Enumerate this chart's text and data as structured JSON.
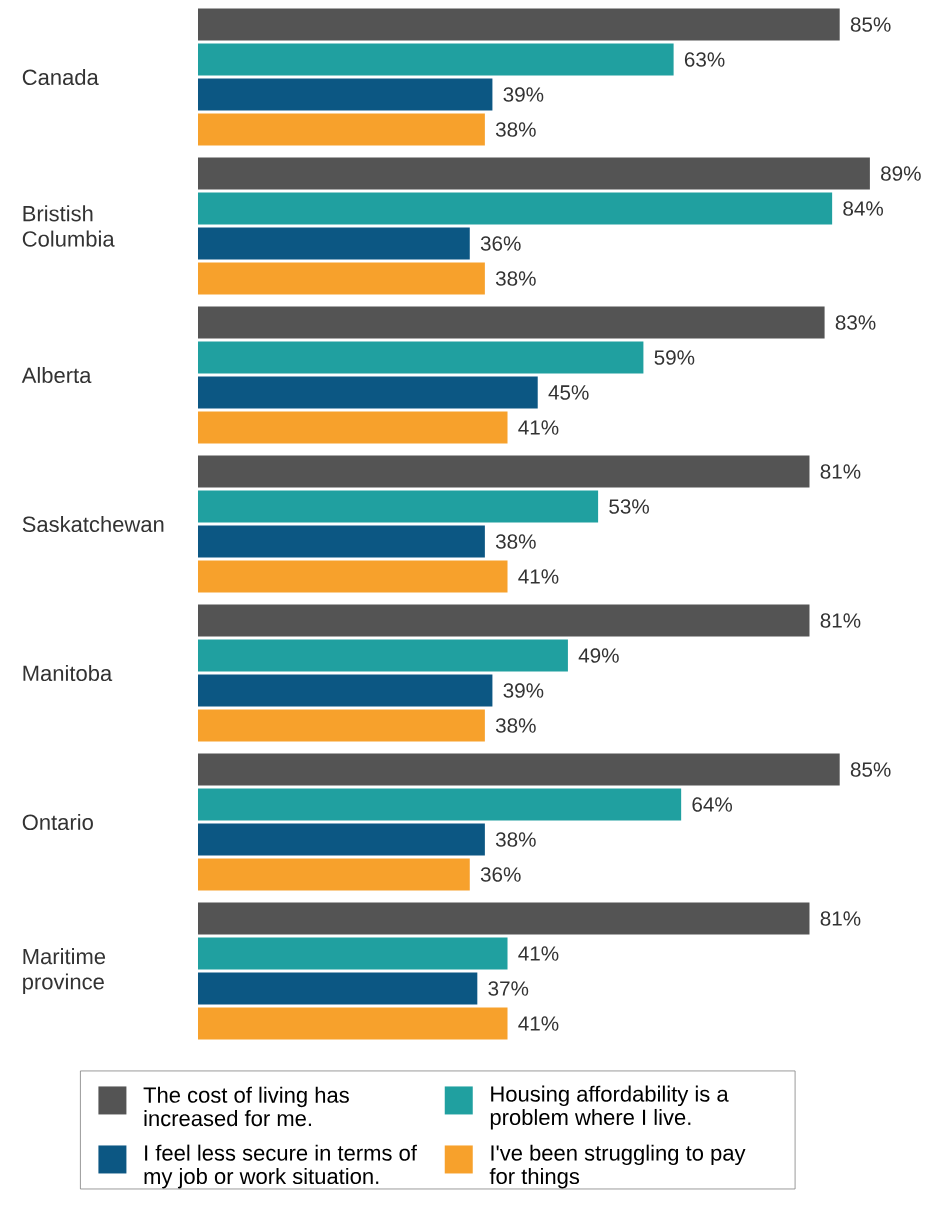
{
  "chart_data": {
    "type": "bar",
    "orientation": "horizontal",
    "legend": "bottom",
    "categories": [
      "Canada",
      "Bristish Columbia",
      "Alberta",
      "Saskatchewan",
      "Manitoba",
      "Ontario",
      "Maritime province"
    ],
    "series": [
      {
        "name": "The cost of living has increased for me.",
        "color": "#545454",
        "values": [
          85,
          89,
          83,
          81,
          81,
          85,
          81
        ],
        "value_labels": [
          "85%",
          "89%",
          "83%",
          "81%",
          "81%",
          "85%",
          "81%"
        ]
      },
      {
        "name": "Housing affordability is a problem where I live.",
        "color": "#20a0a0",
        "values": [
          63,
          84,
          59,
          53,
          49,
          64,
          41
        ],
        "value_labels": [
          "63%",
          "84%",
          "59%",
          "53%",
          "49%",
          "64%",
          "41%"
        ]
      },
      {
        "name": "I feel less secure in terms of my job or work situation.",
        "color": "#0c5783",
        "values": [
          39,
          36,
          45,
          38,
          39,
          38,
          37
        ],
        "value_labels": [
          "39%",
          "36%",
          "45%",
          "38%",
          "39%",
          "38%",
          "37%"
        ]
      },
      {
        "name": "I've been struggling to pay for things",
        "color": "#f7a12c",
        "values": [
          38,
          38,
          41,
          41,
          38,
          36,
          41
        ],
        "value_labels": [
          "38%",
          "38%",
          "41%",
          "41%",
          "38%",
          "36%",
          "41%"
        ]
      }
    ]
  }
}
